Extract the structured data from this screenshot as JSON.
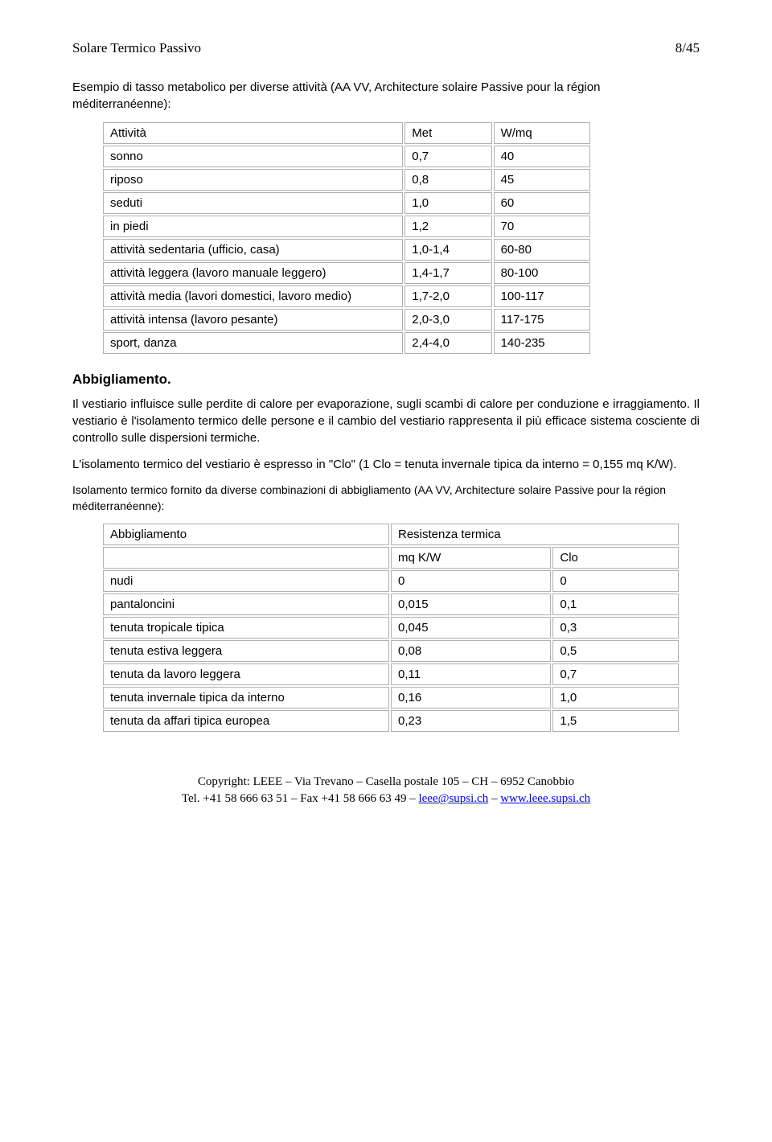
{
  "header": {
    "title": "Solare Termico Passivo",
    "page": "8/45"
  },
  "intro1": "Esempio di tasso metabolico per diverse attività (AA VV, Architecture solaire Passive pour la région méditerranéenne):",
  "table1": {
    "rows": [
      [
        "Attività",
        "Met",
        "W/mq"
      ],
      [
        "sonno",
        "0,7",
        "40"
      ],
      [
        "riposo",
        "0,8",
        "45"
      ],
      [
        "seduti",
        "1,0",
        "60"
      ],
      [
        "in piedi",
        "1,2",
        "70"
      ],
      [
        "attività sedentaria (ufficio, casa)",
        "1,0-1,4",
        "60-80"
      ],
      [
        "attività leggera (lavoro manuale leggero)",
        "1,4-1,7",
        "80-100"
      ],
      [
        "attività media (lavori domestici, lavoro medio)",
        "1,7-2,0",
        "100-117"
      ],
      [
        "attività intensa (lavoro pesante)",
        "2,0-3,0",
        "117-175"
      ],
      [
        "sport, danza",
        "2,4-4,0",
        "140-235"
      ]
    ],
    "col_widths": [
      "62%",
      "18%",
      "20%"
    ]
  },
  "section1": "Abbigliamento.",
  "para1": "Il vestiario influisce sulle perdite di calore per evaporazione, sugli scambi di calore per conduzione e irraggiamento. Il vestiario è l'isolamento termico delle persone e il cambio del vestiario rappresenta il più efficace sistema cosciente di controllo sulle dispersioni termiche.",
  "para2": "L'isolamento termico del vestiario è espresso in \"Clo\" (1 Clo = tenuta invernale tipica da interno = 0,155 mq K/W).",
  "intro2": "Isolamento termico fornito da diverse combinazioni di abbigliamento (AA VV, Architecture solaire Passive pour la région méditerranéenne):",
  "table2": {
    "header_row": [
      "Abbigliamento",
      "Resistenza termica",
      ""
    ],
    "sub_row": [
      "",
      "mq K/W",
      "Clo"
    ],
    "rows": [
      [
        "nudi",
        "0",
        "0"
      ],
      [
        "pantaloncini",
        "0,015",
        "0,1"
      ],
      [
        "tenuta tropicale tipica",
        "0,045",
        "0,3"
      ],
      [
        "tenuta estiva leggera",
        "0,08",
        "0,5"
      ],
      [
        "tenuta da lavoro leggera",
        "0,11",
        "0,7"
      ],
      [
        "tenuta invernale tipica da interno",
        "0,16",
        "1,0"
      ],
      [
        "tenuta da affari tipica europea",
        "0,23",
        "1,5"
      ]
    ],
    "col_widths": [
      "50%",
      "28%",
      "22%"
    ]
  },
  "footer": {
    "line1": "Copyright: LEEE – Via Trevano – Casella postale 105 – CH – 6952 Canobbio",
    "line2_pre": "Tel. +41 58 666 63 51 – Fax +41 58 666 63 49 – ",
    "link1": "leee@supsi.ch",
    "line2_mid": " – ",
    "link2": "www.leee.supsi.ch"
  }
}
